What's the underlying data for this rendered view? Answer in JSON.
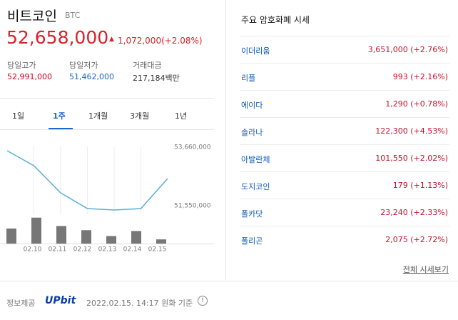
{
  "header": {
    "name": "비트코인",
    "symbol": "BTC",
    "price": "52,658,000",
    "change": "1,072,000(+2.08%)"
  },
  "stats": [
    {
      "label": "당일고가",
      "value": "52,991,000"
    },
    {
      "label": "당일저가",
      "value": "51,462,000"
    },
    {
      "label": "거래대금",
      "value": "217,184백만"
    }
  ],
  "tabs": [
    "1일",
    "1주",
    "1개월",
    "3개월",
    "1년"
  ],
  "active_tab": 1,
  "chart": {
    "type": "line",
    "categories": [
      null,
      "02.10",
      "02.11",
      "02.12",
      "02.13",
      "02.14",
      "02.15"
    ],
    "price": [
      53531000,
      52991000,
      52013000,
      51447000,
      51396000,
      51447000,
      52528000
    ],
    "volume": [
      18,
      31,
      21,
      16,
      9,
      15,
      5
    ],
    "ylim": [
      51241000,
      53814000
    ],
    "yticks": [
      {
        "value": 51550000,
        "label": "51,550,000"
      },
      {
        "value": 53660000,
        "label": "53,660,000"
      }
    ],
    "volume_lim": [
      0,
      35
    ],
    "line_color": "#5aaedb",
    "bar_color": "#777777"
  },
  "market": {
    "title": "주요 암호화폐 시세",
    "rows": [
      {
        "name": "이더리움",
        "value": "3,651,000 (+2.76%)"
      },
      {
        "name": "리플",
        "value": "993 (+2.16%)"
      },
      {
        "name": "에이다",
        "value": "1,290 (+0.78%)"
      },
      {
        "name": "솔라나",
        "value": "122,300 (+4.53%)"
      },
      {
        "name": "아발란체",
        "value": "101,550 (+2.02%)"
      },
      {
        "name": "도지코인",
        "value": "179 (+1.13%)"
      },
      {
        "name": "폴카닷",
        "value": "23,240 (+2.33%)"
      },
      {
        "name": "폴리곤",
        "value": "2,075 (+2.72%)"
      }
    ],
    "more": "전체 시세보기"
  },
  "footer": {
    "provider": "정보제공",
    "brand": "UPbit",
    "time": "2022.02.15. 14:17 원화 기준"
  }
}
